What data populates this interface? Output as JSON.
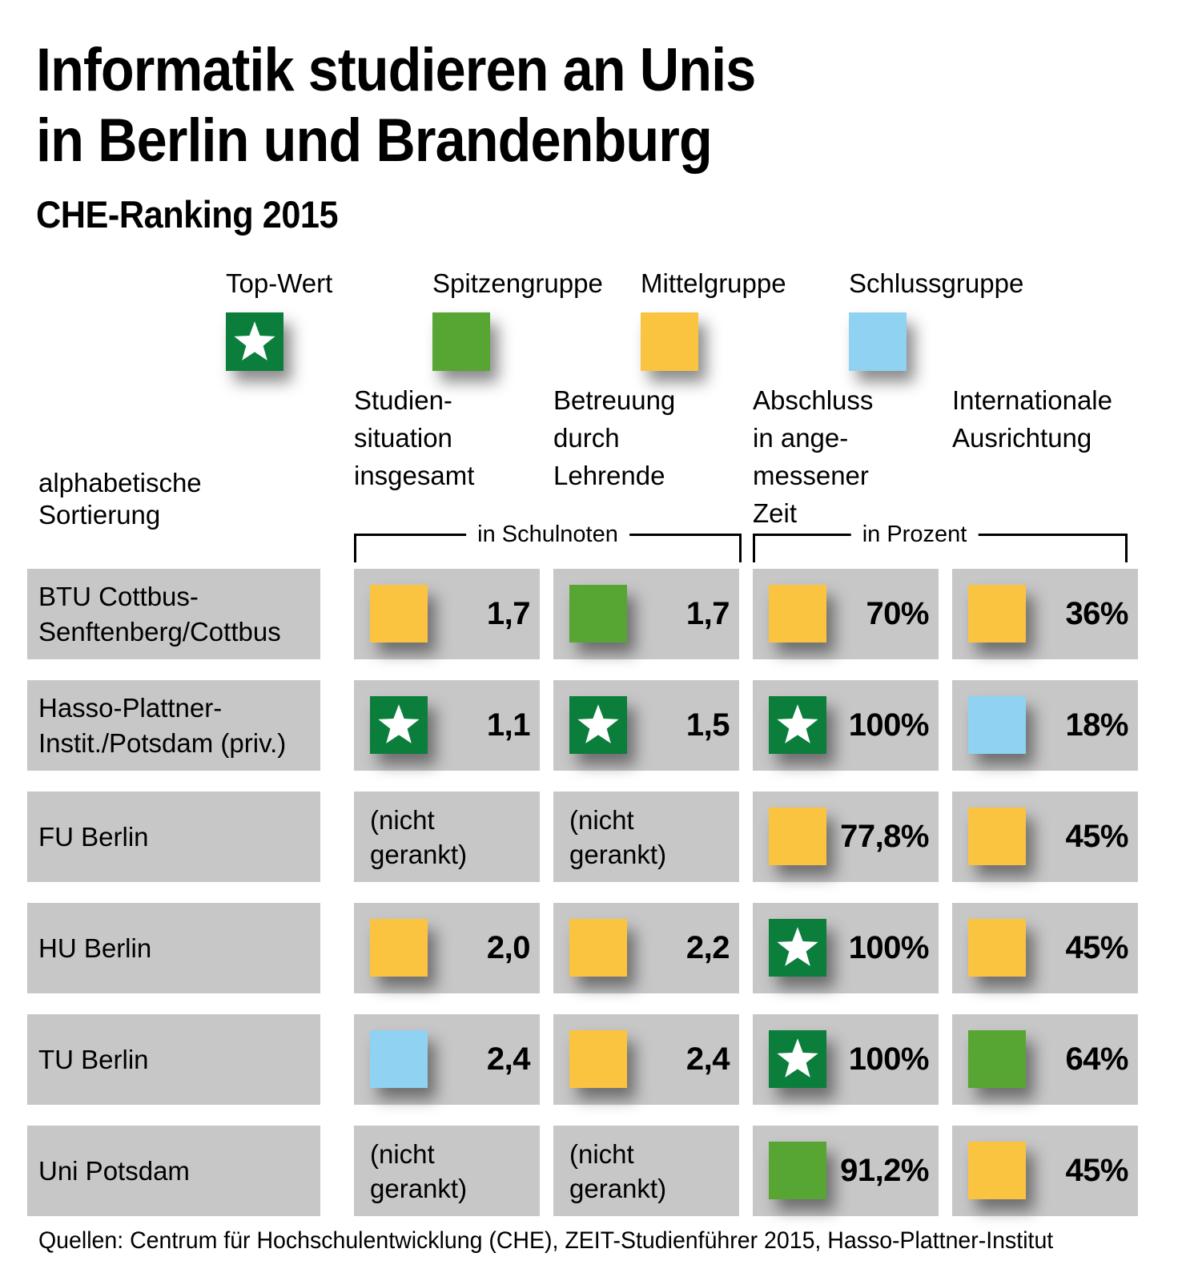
{
  "header": {
    "title_line1": "Informatik studieren an Unis",
    "title_line2": "in Berlin und Brandenburg",
    "subtitle": "CHE-Ranking 2015"
  },
  "legend": [
    {
      "label": "Top-Wert",
      "color": "#0b7e3c",
      "star": true
    },
    {
      "label": "Spitzengruppe",
      "color": "#57a533",
      "star": false
    },
    {
      "label": "Mittelgruppe",
      "color": "#fbc440",
      "star": false
    },
    {
      "label": "Schlussgruppe",
      "color": "#8fd2f2",
      "star": false
    }
  ],
  "sort_note": "alphabetische\nSortierung",
  "units": [
    {
      "label": "in Schulnoten"
    },
    {
      "label": "in Prozent"
    }
  ],
  "chart_data": {
    "type": "table",
    "title": "Informatik studieren an Unis in Berlin und Brandenburg",
    "subtitle": "CHE-Ranking 2015",
    "rating_scale": [
      "Top-Wert",
      "Spitzengruppe",
      "Mittelgruppe",
      "Schlussgruppe"
    ],
    "columns": [
      {
        "label": "Studien-\nsituation\ninsgesamt",
        "unit": "in Schulnoten"
      },
      {
        "label": "Betreuung\ndurch\nLehrende",
        "unit": "in Schulnoten"
      },
      {
        "label": "Abschluss\nin ange-\nmessener\nZeit",
        "unit": "in Prozent"
      },
      {
        "label": "Internationale\nAusrichtung",
        "unit": "in Prozent"
      }
    ],
    "rows": [
      {
        "name": "BTU Cottbus-\nSenftenberg/Cottbus",
        "cells": [
          {
            "group": "Mittelgruppe",
            "value": "1,7"
          },
          {
            "group": "Spitzengruppe",
            "value": "1,7"
          },
          {
            "group": "Mittelgruppe",
            "value": "70%"
          },
          {
            "group": "Mittelgruppe",
            "value": "36%"
          }
        ]
      },
      {
        "name": "Hasso-Plattner-\nInstit./Potsdam (priv.)",
        "cells": [
          {
            "group": "Top-Wert",
            "value": "1,1"
          },
          {
            "group": "Top-Wert",
            "value": "1,5"
          },
          {
            "group": "Top-Wert",
            "value": "100%"
          },
          {
            "group": "Schlussgruppe",
            "value": "18%"
          }
        ]
      },
      {
        "name": "FU Berlin",
        "cells": [
          {
            "group": null,
            "value": "(nicht gerankt)"
          },
          {
            "group": null,
            "value": "(nicht gerankt)"
          },
          {
            "group": "Mittelgruppe",
            "value": "77,8%"
          },
          {
            "group": "Mittelgruppe",
            "value": "45%"
          }
        ]
      },
      {
        "name": "HU Berlin",
        "cells": [
          {
            "group": "Mittelgruppe",
            "value": "2,0"
          },
          {
            "group": "Mittelgruppe",
            "value": "2,2"
          },
          {
            "group": "Top-Wert",
            "value": "100%"
          },
          {
            "group": "Mittelgruppe",
            "value": "45%"
          }
        ]
      },
      {
        "name": "TU Berlin",
        "cells": [
          {
            "group": "Schlussgruppe",
            "value": "2,4"
          },
          {
            "group": "Mittelgruppe",
            "value": "2,4"
          },
          {
            "group": "Top-Wert",
            "value": "100%"
          },
          {
            "group": "Spitzengruppe",
            "value": "64%"
          }
        ]
      },
      {
        "name": "Uni Potsdam",
        "cells": [
          {
            "group": null,
            "value": "(nicht gerankt)"
          },
          {
            "group": null,
            "value": "(nicht gerankt)"
          },
          {
            "group": "Spitzengruppe",
            "value": "91,2%"
          },
          {
            "group": "Mittelgruppe",
            "value": "45%"
          }
        ]
      }
    ]
  },
  "source": "Quellen: Centrum für Hochschulentwicklung (CHE), ZEIT-Studienführer 2015, Hasso-Plattner-Institut",
  "colors": {
    "cell_background": "#c7c7c7",
    "top_wert": "#0b7e3c",
    "spitzengruppe": "#57a533",
    "mittelgruppe": "#fbc440",
    "schlussgruppe": "#8fd2f2"
  }
}
